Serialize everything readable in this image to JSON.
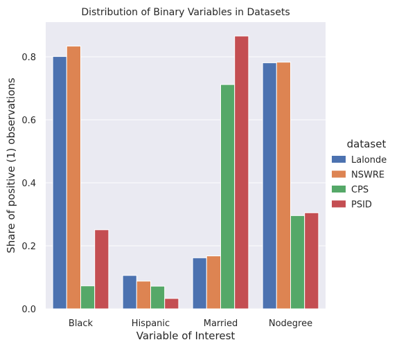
{
  "chart_data": {
    "type": "bar",
    "title": "Distribution of Binary Variables in Datasets",
    "xlabel": "Variable of Interest",
    "ylabel": "Share of positive (1) observations",
    "categories": [
      "Black",
      "Hispanic",
      "Married",
      "Nodegree"
    ],
    "ylim": [
      0,
      0.91
    ],
    "yticks": [
      0.0,
      0.2,
      0.4,
      0.6,
      0.8
    ],
    "ytick_labels": [
      "0.0",
      "0.2",
      "0.4",
      "0.6",
      "0.8"
    ],
    "grid": true,
    "legend": {
      "title": "dataset",
      "placement": "right"
    },
    "series": [
      {
        "name": "Lalonde",
        "color": "#4c72b0",
        "values": [
          0.801,
          0.106,
          0.162,
          0.781
        ]
      },
      {
        "name": "NSWRE",
        "color": "#dd8452",
        "values": [
          0.834,
          0.088,
          0.168,
          0.783
        ]
      },
      {
        "name": "CPS",
        "color": "#55a868",
        "values": [
          0.073,
          0.072,
          0.712,
          0.296
        ]
      },
      {
        "name": "PSID",
        "color": "#c44e52",
        "values": [
          0.251,
          0.033,
          0.866,
          0.305
        ]
      }
    ]
  }
}
